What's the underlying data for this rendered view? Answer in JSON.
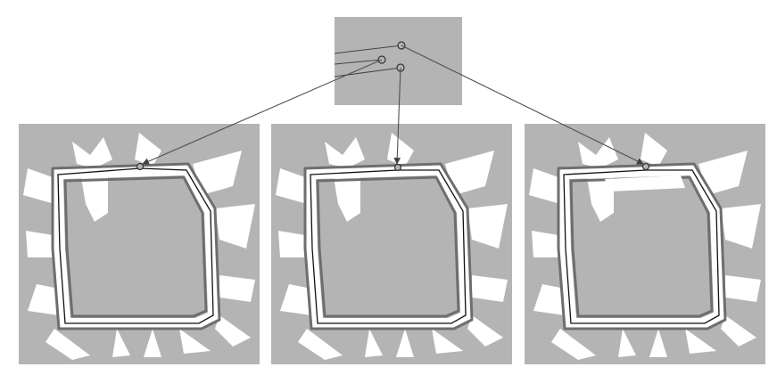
{
  "figure": {
    "background_color": "#ffffff",
    "map_gray": "#b4b4b4",
    "free_space_color": "#ffffff",
    "trajectory_color": "#111111",
    "connector_color": "#505050",
    "panels": [
      {
        "id": "map-left",
        "marker": "selected-node"
      },
      {
        "id": "map-middle",
        "marker": "selected-node"
      },
      {
        "id": "map-right",
        "marker": "selected-node"
      }
    ],
    "inset": {
      "nodes": 3,
      "description_visible": false
    }
  }
}
